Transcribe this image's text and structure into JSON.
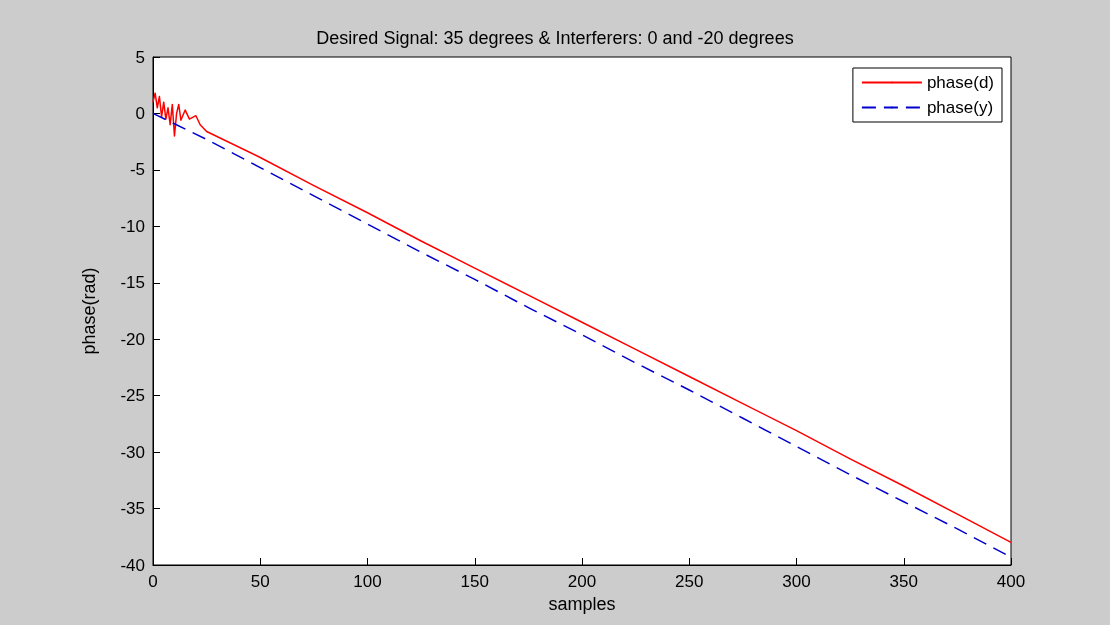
{
  "chart_data": {
    "type": "line",
    "title": "Desired Signal: 35 degrees & Interferers: 0 and -20 degrees",
    "xlabel": "samples",
    "ylabel": "phase(rad)",
    "xlim": [
      0,
      400
    ],
    "xticks": [
      0,
      50,
      100,
      150,
      200,
      250,
      300,
      350,
      400
    ],
    "ylim": [
      -40,
      5
    ],
    "yticks": [
      -40,
      -35,
      -30,
      -25,
      -20,
      -15,
      -10,
      -5,
      0,
      5
    ],
    "grid": false,
    "legend": "top right",
    "marker": "none",
    "series": [
      {
        "name": "phase(d)",
        "color": "#ff0000",
        "line_style": "solid",
        "x": [
          0,
          1,
          2,
          3,
          4,
          5,
          6,
          7,
          8,
          9,
          10,
          11,
          12,
          13,
          15,
          17,
          20,
          22,
          25,
          50,
          75,
          100,
          125,
          150,
          175,
          200,
          225,
          250,
          275,
          300,
          325,
          350,
          375,
          400
        ],
        "values": [
          1,
          1.8,
          0.5,
          1.5,
          -0.3,
          1,
          -0.5,
          0.5,
          -1,
          0.8,
          -2,
          0,
          0.8,
          -0.6,
          0.3,
          -0.5,
          -0.2,
          -1,
          -1.6,
          -3.9,
          -6.4,
          -8.8,
          -11.3,
          -13.7,
          -16.1,
          -18.5,
          -20.9,
          -23.3,
          -25.7,
          -28.1,
          -30.6,
          -33,
          -35.5,
          -38
        ]
      },
      {
        "name": "phase(y)",
        "color": "#0000cc",
        "line_style": "dashed",
        "x": [
          0,
          25,
          50,
          75,
          100,
          125,
          150,
          175,
          200,
          225,
          250,
          275,
          300,
          325,
          350,
          375,
          400
        ],
        "values": [
          0,
          -2.3,
          -4.8,
          -7.3,
          -9.8,
          -12.3,
          -14.7,
          -17.2,
          -19.6,
          -22.1,
          -24.5,
          -27,
          -29.5,
          -32,
          -34.4,
          -36.8,
          -39.3
        ]
      }
    ]
  }
}
